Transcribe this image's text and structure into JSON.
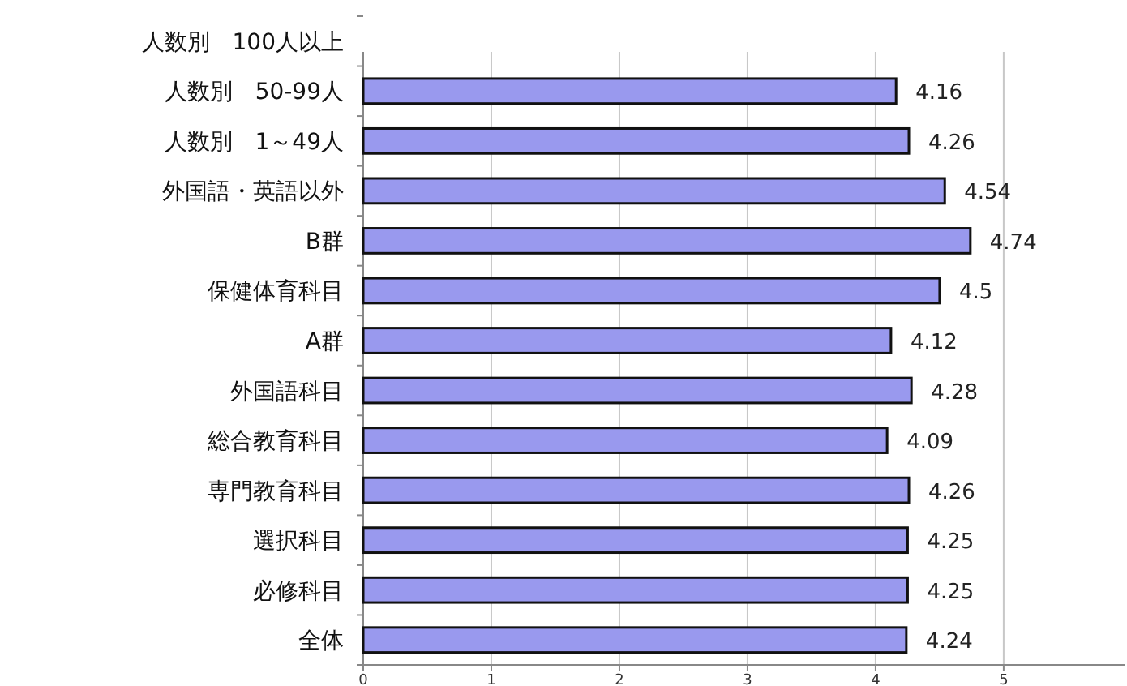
{
  "chart_data": {
    "type": "bar",
    "orientation": "horizontal",
    "categories": [
      "人数別　100人以上",
      "人数別　50-99人",
      "人数別　1～49人",
      "外国語・英語以外",
      "B群",
      "保健体育科目",
      "A群",
      "外国語科目",
      "総合教育科目",
      "専門教育科目",
      "選択科目",
      "必修科目",
      "全体"
    ],
    "values": [
      null,
      4.16,
      4.26,
      4.54,
      4.74,
      4.5,
      4.12,
      4.28,
      4.09,
      4.26,
      4.25,
      4.25,
      4.24
    ],
    "color": "#9999ee",
    "data_labels": true,
    "grid": "x",
    "xlim": [
      0,
      5.95
    ],
    "xticks": [
      0,
      1,
      2,
      3,
      4,
      5
    ]
  }
}
